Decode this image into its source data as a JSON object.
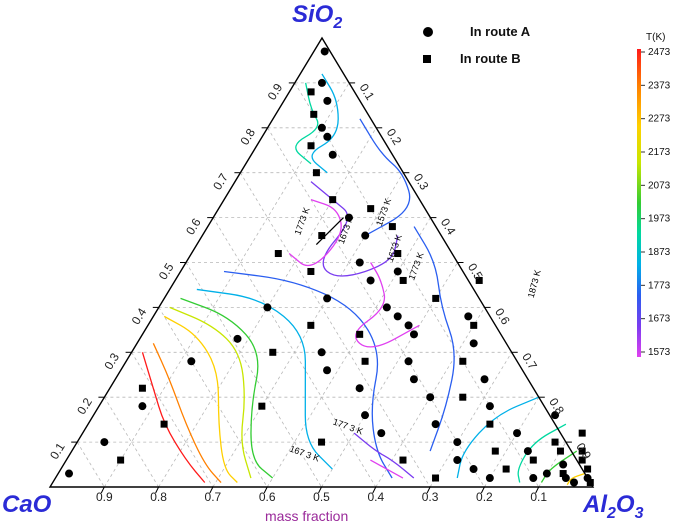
{
  "chart_data": {
    "type": "scatter",
    "diagram": "ternary",
    "vertices": {
      "top": "SiO",
      "top_sub": "2",
      "left": "CaO",
      "right": "Al",
      "right_sub": "2",
      "right_tail": "O",
      "right_tail_sub": "3"
    },
    "xlabel": "mass fraction",
    "tick_labels": [
      "0.1",
      "0.2",
      "0.3",
      "0.4",
      "0.5",
      "0.6",
      "0.7",
      "0.8",
      "0.9"
    ],
    "legend": [
      {
        "name": "In route A",
        "marker": "circle"
      },
      {
        "name": "In route B",
        "marker": "square"
      }
    ],
    "colorbar": {
      "title": "T(K)",
      "ticks": [
        "2473",
        "2373",
        "2273",
        "2173",
        "2073",
        "1973",
        "1873",
        "1773",
        "1673",
        "1573"
      ],
      "colors": [
        "#ff1a1a",
        "#ff8000",
        "#ffd000",
        "#c8e600",
        "#33cc33",
        "#00d8a0",
        "#00b0e8",
        "#2a5ef0",
        "#7a3cf0",
        "#e040f0"
      ]
    },
    "isotherm_labels": [
      "1773 K",
      "1673 K",
      "1573 K",
      "1673 K",
      "1773 K",
      "1873 K",
      "177 3 K",
      "167 3 K"
    ],
    "series": [
      {
        "name": "In route A",
        "points_al_si": [
          [
            0.02,
            0.97
          ],
          [
            0.05,
            0.9
          ],
          [
            0.08,
            0.86
          ],
          [
            0.1,
            0.8
          ],
          [
            0.12,
            0.78
          ],
          [
            0.15,
            0.74
          ],
          [
            0.25,
            0.6
          ],
          [
            0.3,
            0.56
          ],
          [
            0.32,
            0.5
          ],
          [
            0.36,
            0.46
          ],
          [
            0.4,
            0.48
          ],
          [
            0.42,
            0.4
          ],
          [
            0.45,
            0.38
          ],
          [
            0.48,
            0.36
          ],
          [
            0.5,
            0.34
          ],
          [
            0.3,
            0.42
          ],
          [
            0.35,
            0.3
          ],
          [
            0.38,
            0.26
          ],
          [
            0.46,
            0.22
          ],
          [
            0.52,
            0.28
          ],
          [
            0.55,
            0.24
          ],
          [
            0.5,
            0.16
          ],
          [
            0.55,
            0.12
          ],
          [
            0.6,
            0.2
          ],
          [
            0.64,
            0.14
          ],
          [
            0.7,
            0.1
          ],
          [
            0.72,
            0.06
          ],
          [
            0.76,
            0.04
          ],
          [
            0.8,
            0.02
          ],
          [
            0.84,
            0.08
          ],
          [
            0.88,
            0.02
          ],
          [
            0.9,
            0.03
          ],
          [
            0.92,
            0.05
          ],
          [
            0.94,
            0.02
          ],
          [
            0.96,
            0.01
          ],
          [
            0.98,
            0.02
          ],
          [
            0.68,
            0.24
          ],
          [
            0.72,
            0.18
          ],
          [
            0.8,
            0.12
          ],
          [
            0.85,
            0.16
          ],
          [
            0.62,
            0.32
          ],
          [
            0.58,
            0.38
          ],
          [
            0.02,
            0.03
          ],
          [
            0.05,
            0.1
          ],
          [
            0.08,
            0.18
          ],
          [
            0.12,
            0.28
          ],
          [
            0.18,
            0.33
          ],
          [
            0.2,
            0.4
          ]
        ]
      },
      {
        "name": "In route B",
        "points_al_si": [
          [
            0.04,
            0.88
          ],
          [
            0.07,
            0.83
          ],
          [
            0.1,
            0.76
          ],
          [
            0.14,
            0.7
          ],
          [
            0.2,
            0.64
          ],
          [
            0.22,
            0.56
          ],
          [
            0.28,
            0.62
          ],
          [
            0.34,
            0.58
          ],
          [
            0.38,
            0.52
          ],
          [
            0.42,
            0.46
          ],
          [
            0.3,
            0.36
          ],
          [
            0.26,
            0.3
          ],
          [
            0.4,
            0.34
          ],
          [
            0.44,
            0.28
          ],
          [
            0.5,
            0.42
          ],
          [
            0.56,
            0.46
          ],
          [
            0.6,
            0.36
          ],
          [
            0.62,
            0.28
          ],
          [
            0.66,
            0.2
          ],
          [
            0.74,
            0.14
          ],
          [
            0.78,
            0.08
          ],
          [
            0.82,
            0.04
          ],
          [
            0.86,
            0.06
          ],
          [
            0.9,
            0.08
          ],
          [
            0.93,
            0.03
          ],
          [
            0.95,
            0.06
          ],
          [
            0.97,
            0.04
          ],
          [
            0.99,
            0.01
          ],
          [
            0.88,
            0.1
          ],
          [
            0.92,
            0.12
          ],
          [
            0.94,
            0.08
          ],
          [
            0.16,
            0.52
          ],
          [
            0.24,
            0.48
          ],
          [
            0.1,
            0.06
          ],
          [
            0.14,
            0.14
          ],
          [
            0.06,
            0.22
          ],
          [
            0.3,
            0.18
          ],
          [
            0.45,
            0.1
          ],
          [
            0.62,
            0.06
          ],
          [
            0.7,
            0.02
          ]
        ]
      }
    ]
  }
}
